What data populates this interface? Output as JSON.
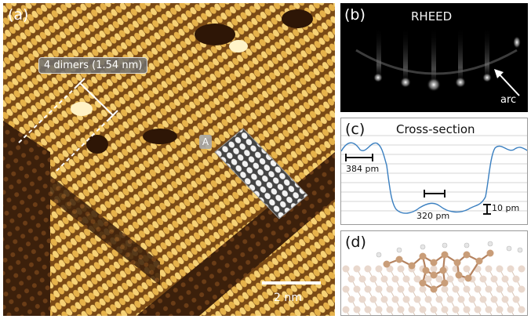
{
  "panel_a": {
    "tag": "(a)",
    "dimer_label": "4 dimers (1.54 nm)",
    "site_label": "A",
    "scale_label": "2 nm",
    "colors": {
      "bright": "#f2c55a",
      "mid": "#b8842a",
      "trench": "#4a2a10"
    }
  },
  "panel_b": {
    "tag": "(b)",
    "title": "RHEED",
    "arrow_label": "arc"
  },
  "panel_c": {
    "tag": "(c)",
    "title": "Cross-section",
    "label_left": "384 pm",
    "label_center": "320 pm",
    "label_right": "10 pm",
    "line_color": "#3a7fc0"
  },
  "panel_d": {
    "tag": "(d)",
    "colors": {
      "substrate": "#e9d8cd",
      "adatom": "#c99d78",
      "hydrogen": "#e8e8e8"
    }
  }
}
